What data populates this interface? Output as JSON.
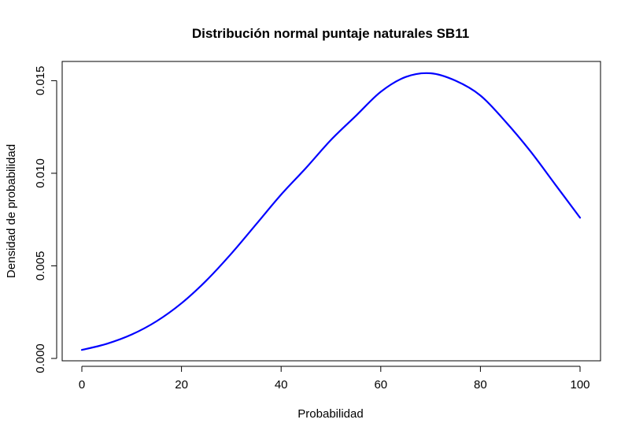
{
  "chart_data": {
    "type": "line",
    "title": "Distribución normal puntaje naturales SB11",
    "xlabel": "Probabilidad",
    "ylabel": "Densidad de probabilidad",
    "xlim": [
      0,
      100
    ],
    "ylim": [
      0,
      0.0155
    ],
    "xticks": [
      0,
      20,
      40,
      60,
      80,
      100
    ],
    "xtick_labels": [
      "0",
      "20",
      "40",
      "60",
      "80",
      "100"
    ],
    "yticks": [
      0,
      0.005,
      0.01,
      0.015
    ],
    "ytick_labels": [
      "0.000",
      "0.005",
      "0.010",
      "0.015"
    ],
    "grid": false,
    "series": [
      {
        "color": "#0000ff",
        "x": [
          0,
          5,
          10,
          15,
          20,
          25,
          30,
          35,
          40,
          45,
          50,
          55,
          60,
          65,
          70,
          75,
          80,
          85,
          90,
          95,
          100
        ],
        "y": [
          0.00046,
          0.00079,
          0.00129,
          0.00201,
          0.00298,
          0.00421,
          0.00566,
          0.00725,
          0.00885,
          0.01029,
          0.0118,
          0.0131,
          0.0144,
          0.0152,
          0.0154,
          0.015,
          0.0142,
          0.0128,
          0.0112,
          0.0094,
          0.0076
        ]
      }
    ]
  }
}
